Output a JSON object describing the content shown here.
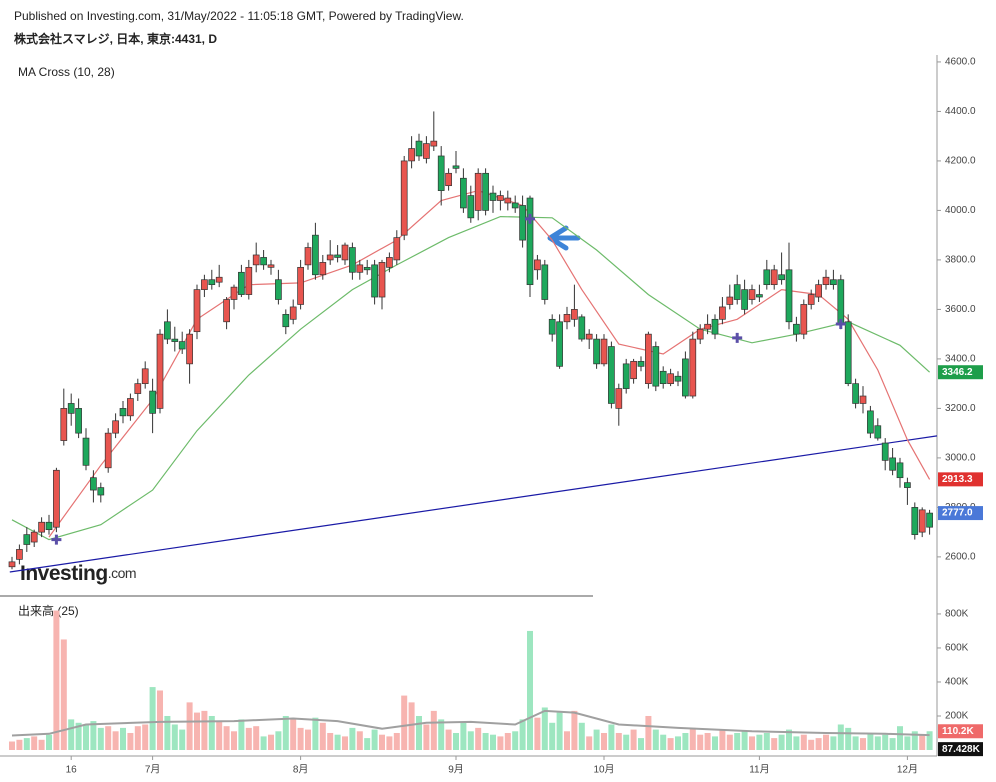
{
  "chart_data": {
    "type": "candlestick",
    "subtitle": "Published on Investing.com, 31/May/2022 - 11:05:18 GMT, Powered by TradingView.",
    "title": "株式会社スマレジ, 日本, 東京:4431, D",
    "indicator_label": "MA Cross (10, 28)",
    "volume_label": "出来高 (25)",
    "logo": "Investing",
    "logo_suffix": ".com",
    "categories": [
      null,
      null,
      null,
      null,
      null,
      null,
      null,
      null,
      "16",
      null,
      null,
      null,
      null,
      null,
      null,
      null,
      null,
      null,
      null,
      "7月",
      null,
      null,
      null,
      null,
      null,
      null,
      null,
      null,
      null,
      null,
      null,
      null,
      null,
      null,
      null,
      null,
      null,
      null,
      null,
      "8月",
      null,
      null,
      null,
      null,
      null,
      null,
      null,
      null,
      null,
      null,
      null,
      null,
      null,
      null,
      null,
      null,
      null,
      null,
      null,
      null,
      "9月",
      null,
      null,
      null,
      null,
      null,
      null,
      null,
      null,
      null,
      null,
      null,
      null,
      null,
      null,
      null,
      null,
      null,
      null,
      null,
      "10月",
      null,
      null,
      null,
      null,
      null,
      null,
      null,
      null,
      null,
      null,
      null,
      null,
      null,
      null,
      null,
      null,
      null,
      null,
      null,
      null,
      "11月",
      null,
      null,
      null,
      null,
      null,
      null,
      null,
      null,
      null,
      null,
      null,
      null,
      null,
      null,
      null,
      null,
      null,
      null,
      null,
      "12月",
      null,
      null,
      null
    ],
    "ohlc": [
      [
        2560,
        2600,
        2550,
        2580
      ],
      [
        2590,
        2650,
        2570,
        2630
      ],
      [
        2690,
        2720,
        2620,
        2650
      ],
      [
        2660,
        2710,
        2640,
        2700
      ],
      [
        2700,
        2760,
        2680,
        2740
      ],
      [
        2740,
        2770,
        2690,
        2710
      ],
      [
        2720,
        2960,
        2700,
        2950
      ],
      [
        3070,
        3280,
        3050,
        3200
      ],
      [
        3220,
        3260,
        3130,
        3180
      ],
      [
        3200,
        3240,
        3080,
        3100
      ],
      [
        3080,
        3120,
        2950,
        2970
      ],
      [
        2920,
        2950,
        2820,
        2870
      ],
      [
        2880,
        2900,
        2820,
        2850
      ],
      [
        2960,
        3120,
        2940,
        3100
      ],
      [
        3100,
        3180,
        3080,
        3150
      ],
      [
        3200,
        3230,
        3140,
        3170
      ],
      [
        3170,
        3260,
        3150,
        3240
      ],
      [
        3260,
        3320,
        3230,
        3300
      ],
      [
        3300,
        3390,
        3280,
        3360
      ],
      [
        3270,
        3320,
        3100,
        3180
      ],
      [
        3200,
        3520,
        3180,
        3500
      ],
      [
        3550,
        3600,
        3460,
        3480
      ],
      [
        3480,
        3530,
        3430,
        3470
      ],
      [
        3470,
        3510,
        3420,
        3440
      ],
      [
        3380,
        3520,
        3300,
        3500
      ],
      [
        3510,
        3700,
        3480,
        3680
      ],
      [
        3680,
        3740,
        3650,
        3720
      ],
      [
        3720,
        3760,
        3680,
        3700
      ],
      [
        3710,
        3780,
        3690,
        3730
      ],
      [
        3550,
        3650,
        3520,
        3640
      ],
      [
        3640,
        3700,
        3600,
        3690
      ],
      [
        3750,
        3780,
        3650,
        3660
      ],
      [
        3660,
        3800,
        3640,
        3770
      ],
      [
        3780,
        3870,
        3750,
        3820
      ],
      [
        3810,
        3840,
        3760,
        3780
      ],
      [
        3770,
        3800,
        3740,
        3780
      ],
      [
        3720,
        3760,
        3620,
        3640
      ],
      [
        3580,
        3600,
        3500,
        3530
      ],
      [
        3560,
        3640,
        3540,
        3610
      ],
      [
        3620,
        3800,
        3600,
        3770
      ],
      [
        3780,
        3870,
        3760,
        3850
      ],
      [
        3900,
        3950,
        3720,
        3740
      ],
      [
        3740,
        3820,
        3720,
        3790
      ],
      [
        3800,
        3880,
        3780,
        3820
      ],
      [
        3820,
        3860,
        3790,
        3810
      ],
      [
        3800,
        3870,
        3780,
        3860
      ],
      [
        3850,
        3870,
        3720,
        3750
      ],
      [
        3750,
        3800,
        3720,
        3780
      ],
      [
        3770,
        3800,
        3740,
        3760
      ],
      [
        3780,
        3800,
        3620,
        3650
      ],
      [
        3650,
        3800,
        3600,
        3790
      ],
      [
        3770,
        3830,
        3750,
        3810
      ],
      [
        3800,
        3920,
        3780,
        3890
      ],
      [
        3900,
        4220,
        3880,
        4200
      ],
      [
        4200,
        4300,
        4170,
        4250
      ],
      [
        4280,
        4310,
        4200,
        4220
      ],
      [
        4210,
        4300,
        4190,
        4270
      ],
      [
        4260,
        4400,
        4240,
        4280
      ],
      [
        4220,
        4260,
        4020,
        4080
      ],
      [
        4100,
        4170,
        4080,
        4150
      ],
      [
        4180,
        4240,
        4150,
        4170
      ],
      [
        4130,
        4170,
        3990,
        4010
      ],
      [
        4060,
        4100,
        3950,
        3970
      ],
      [
        4000,
        4170,
        3960,
        4150
      ],
      [
        4150,
        4170,
        3980,
        4000
      ],
      [
        4070,
        4100,
        3990,
        4040
      ],
      [
        4040,
        4080,
        4000,
        4060
      ],
      [
        4030,
        4080,
        4000,
        4050
      ],
      [
        4030,
        4060,
        3990,
        4010
      ],
      [
        4020,
        4060,
        3850,
        3880
      ],
      [
        4050,
        4060,
        3650,
        3700
      ],
      [
        3760,
        3820,
        3720,
        3800
      ],
      [
        3780,
        3800,
        3620,
        3640
      ],
      [
        3560,
        3580,
        3470,
        3500
      ],
      [
        3550,
        3580,
        3360,
        3370
      ],
      [
        3550,
        3610,
        3520,
        3580
      ],
      [
        3560,
        3700,
        3530,
        3600
      ],
      [
        3570,
        3580,
        3470,
        3480
      ],
      [
        3480,
        3520,
        3440,
        3500
      ],
      [
        3480,
        3500,
        3360,
        3380
      ],
      [
        3380,
        3500,
        3370,
        3480
      ],
      [
        3450,
        3470,
        3200,
        3220
      ],
      [
        3200,
        3300,
        3130,
        3280
      ],
      [
        3380,
        3400,
        3260,
        3280
      ],
      [
        3320,
        3400,
        3300,
        3390
      ],
      [
        3390,
        3410,
        3350,
        3370
      ],
      [
        3300,
        3510,
        3280,
        3500
      ],
      [
        3450,
        3470,
        3270,
        3290
      ],
      [
        3350,
        3370,
        3280,
        3300
      ],
      [
        3300,
        3360,
        3290,
        3340
      ],
      [
        3330,
        3350,
        3290,
        3310
      ],
      [
        3400,
        3430,
        3240,
        3250
      ],
      [
        3250,
        3510,
        3240,
        3480
      ],
      [
        3480,
        3540,
        3460,
        3520
      ],
      [
        3520,
        3580,
        3500,
        3540
      ],
      [
        3560,
        3580,
        3480,
        3500
      ],
      [
        3560,
        3650,
        3540,
        3610
      ],
      [
        3620,
        3700,
        3600,
        3650
      ],
      [
        3700,
        3740,
        3620,
        3640
      ],
      [
        3680,
        3720,
        3580,
        3600
      ],
      [
        3640,
        3700,
        3620,
        3680
      ],
      [
        3660,
        3700,
        3630,
        3650
      ],
      [
        3760,
        3800,
        3680,
        3700
      ],
      [
        3700,
        3780,
        3680,
        3760
      ],
      [
        3740,
        3830,
        3700,
        3720
      ],
      [
        3760,
        3870,
        3520,
        3550
      ],
      [
        3540,
        3570,
        3470,
        3500
      ],
      [
        3500,
        3640,
        3480,
        3620
      ],
      [
        3620,
        3680,
        3600,
        3660
      ],
      [
        3650,
        3720,
        3630,
        3700
      ],
      [
        3700,
        3760,
        3680,
        3730
      ],
      [
        3720,
        3760,
        3680,
        3700
      ],
      [
        3720,
        3740,
        3520,
        3540
      ],
      [
        3550,
        3580,
        3290,
        3300
      ],
      [
        3300,
        3320,
        3200,
        3220
      ],
      [
        3220,
        3290,
        3180,
        3250
      ],
      [
        3190,
        3210,
        3080,
        3100
      ],
      [
        3130,
        3160,
        3070,
        3080
      ],
      [
        3060,
        3080,
        2950,
        2990
      ],
      [
        3000,
        3040,
        2930,
        2950
      ],
      [
        2980,
        3000,
        2880,
        2920
      ],
      [
        2900,
        2920,
        2810,
        2880
      ],
      [
        2800,
        2820,
        2670,
        2690
      ],
      [
        2700,
        2800,
        2680,
        2790
      ],
      [
        2777,
        2790,
        2690,
        2720
      ]
    ],
    "up_color": "#e8554f",
    "down_color": "#1ea85c",
    "ma10": {
      "color": "#e57373",
      "x": [
        5,
        12,
        19,
        25,
        32,
        39,
        46,
        52,
        58,
        63,
        69,
        73,
        77,
        82,
        88,
        93,
        98,
        104,
        109,
        113,
        117,
        121,
        124
      ],
      "values": [
        2680,
        2970,
        3235,
        3560,
        3700,
        3707,
        3780,
        3880,
        4040,
        4080,
        4020,
        3880,
        3680,
        3460,
        3420,
        3520,
        3560,
        3680,
        3660,
        3560,
        3355,
        3073,
        2913.3
      ],
      "badge_color": "#e0312f"
    },
    "ma28": {
      "color": "#6dbb6a",
      "x": [
        0,
        5,
        12,
        19,
        25,
        32,
        39,
        46,
        52,
        59,
        66,
        73,
        79,
        86,
        93,
        100,
        106,
        113,
        120,
        124
      ],
      "values": [
        2750,
        2670,
        2730,
        2870,
        3110,
        3335,
        3520,
        3680,
        3780,
        3890,
        3975,
        3970,
        3840,
        3660,
        3520,
        3465,
        3500,
        3550,
        3455,
        3346.2
      ],
      "badge_color": "#1e9e4a"
    },
    "trendline": {
      "color": "#1a1aa6",
      "x": [
        -0.3,
        125
      ],
      "values": [
        2539,
        3089
      ]
    },
    "signals": {
      "color": "#5b4fa8",
      "x": [
        6,
        70,
        98,
        112
      ],
      "values": [
        2670,
        3966,
        3485,
        3541
      ]
    },
    "price_badge": {
      "value": 2777,
      "label": "2777.0",
      "color": "#4a78d8"
    },
    "ylim": [
      2446,
      4628
    ],
    "yticks": [
      {
        "value": 2600,
        "label": "2600.0"
      },
      {
        "value": 2800,
        "label": "2800.0"
      },
      {
        "value": 3000,
        "label": "3000.0"
      },
      {
        "value": 3200,
        "label": "3200.0"
      },
      {
        "value": 3400,
        "label": "3400.0"
      },
      {
        "value": 3600,
        "label": "3600.0"
      },
      {
        "value": 3800,
        "label": "3800.0"
      },
      {
        "value": 4000,
        "label": "4000.0"
      },
      {
        "value": 4200,
        "label": "4200.0"
      },
      {
        "value": 4400,
        "label": "4400.0"
      },
      {
        "value": 4600,
        "label": "4600.0"
      }
    ],
    "volume": {
      "values": [
        50000,
        60000,
        70000,
        80000,
        60000,
        90000,
        820000,
        650000,
        180000,
        160000,
        150000,
        170000,
        130000,
        140000,
        110000,
        130000,
        100000,
        140000,
        150000,
        370000,
        350000,
        200000,
        150000,
        120000,
        280000,
        220000,
        230000,
        200000,
        170000,
        140000,
        110000,
        180000,
        130000,
        140000,
        80000,
        90000,
        110000,
        200000,
        180000,
        130000,
        120000,
        190000,
        160000,
        100000,
        90000,
        80000,
        130000,
        110000,
        70000,
        120000,
        90000,
        80000,
        100000,
        320000,
        280000,
        200000,
        150000,
        230000,
        180000,
        120000,
        100000,
        160000,
        110000,
        130000,
        100000,
        90000,
        80000,
        100000,
        110000,
        180000,
        700000,
        190000,
        250000,
        160000,
        220000,
        110000,
        230000,
        160000,
        80000,
        120000,
        100000,
        150000,
        100000,
        90000,
        120000,
        70000,
        200000,
        120000,
        90000,
        70000,
        80000,
        100000,
        130000,
        90000,
        100000,
        80000,
        120000,
        90000,
        100000,
        110000,
        80000,
        90000,
        100000,
        70000,
        90000,
        120000,
        80000,
        90000,
        60000,
        70000,
        90000,
        80000,
        150000,
        130000,
        80000,
        70000,
        100000,
        80000,
        90000,
        70000,
        140000,
        80000,
        110000,
        90000,
        110200
      ],
      "up_color": "#f7b4b0",
      "down_color": "#9de6c0",
      "ylim": [
        0,
        882000
      ],
      "yticks": [
        {
          "value": 200000,
          "label": "200K"
        },
        {
          "value": 400000,
          "label": "400K"
        },
        {
          "value": 600000,
          "label": "600K"
        },
        {
          "value": 800000,
          "label": "800K"
        }
      ],
      "ma": {
        "color": "#a0a0a0",
        "x": [
          0,
          5,
          10,
          20,
          30,
          38,
          44,
          50,
          56,
          62,
          68,
          72,
          76,
          82,
          90,
          100,
          110,
          118,
          124
        ],
        "values": [
          85000,
          95000,
          150000,
          165000,
          170000,
          185000,
          170000,
          125000,
          160000,
          165000,
          150000,
          230000,
          220000,
          150000,
          130000,
          110000,
          100000,
          95000,
          87428
        ]
      },
      "badge": {
        "value": 110200,
        "label": "110.2K",
        "color": "#ef6a6a"
      },
      "ma_badge": {
        "value": 87428,
        "label": "87.428K",
        "color": "#111111"
      }
    }
  }
}
